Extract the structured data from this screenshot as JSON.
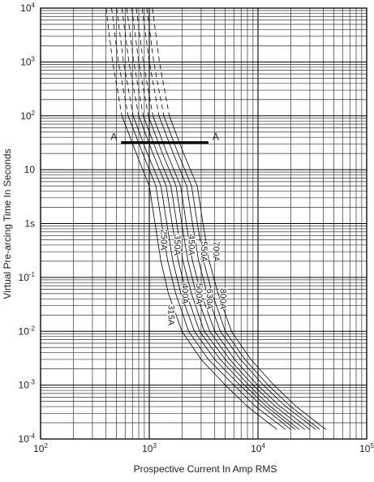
{
  "chart_data": {
    "type": "line",
    "xlabel": "Prospective Current In Amp RMS",
    "ylabel": "Virtual Pre-arcing Time In Seconds",
    "xscale": "log",
    "yscale": "log",
    "xlim": [
      100,
      100000
    ],
    "ylim": [
      0.0001,
      10000
    ],
    "grid": true,
    "x_ticks": [
      {
        "base": "10",
        "exp": "2"
      },
      {
        "base": "10",
        "exp": "3"
      },
      {
        "base": "10",
        "exp": "4"
      },
      {
        "base": "10",
        "exp": "5"
      }
    ],
    "y_ticks": [
      {
        "base": "10",
        "exp": "-4"
      },
      {
        "base": "10",
        "exp": "-3"
      },
      {
        "base": "10",
        "exp": "-2"
      },
      {
        "base": "10",
        "exp": "-1"
      },
      {
        "base": "1s",
        "exp": ""
      },
      {
        "base": "10",
        "exp": ""
      },
      {
        "base": "10",
        "exp": "2"
      },
      {
        "base": "10",
        "exp": "3"
      },
      {
        "base": "10",
        "exp": "4"
      }
    ],
    "reference_line": {
      "label_left": "A",
      "label_right": "A",
      "y": 32,
      "x_start": 550,
      "x_end": 3500
    },
    "series": [
      {
        "name": "250A",
        "label_x": 1280,
        "label_y": 0.5,
        "x": [
          400,
          460,
          560,
          760,
          1000,
          1130,
          1280,
          1500,
          2000,
          3000,
          5000,
          8000,
          15000
        ],
        "y": [
          10000,
          1000,
          100,
          20,
          5,
          1,
          0.2,
          0.05,
          0.01,
          0.003,
          0.001,
          0.0004,
          0.00015
        ]
      },
      {
        "name": "315A",
        "label_x": 1500,
        "label_y": 0.02,
        "x": [
          450,
          520,
          640,
          870,
          1150,
          1300,
          1480,
          1750,
          2300,
          3500,
          6000,
          9500,
          18000
        ],
        "y": [
          10000,
          1000,
          100,
          20,
          5,
          1,
          0.2,
          0.05,
          0.01,
          0.003,
          0.001,
          0.0004,
          0.00015
        ]
      },
      {
        "name": "350A",
        "label_x": 1700,
        "label_y": 0.4,
        "x": [
          500,
          580,
          710,
          960,
          1280,
          1450,
          1650,
          1950,
          2600,
          4000,
          6800,
          11000,
          20000
        ],
        "y": [
          10000,
          1000,
          100,
          20,
          5,
          1,
          0.2,
          0.05,
          0.01,
          0.003,
          0.001,
          0.0004,
          0.00015
        ]
      },
      {
        "name": "400A",
        "label_x": 2000,
        "label_y": 0.05,
        "x": [
          560,
          650,
          800,
          1080,
          1430,
          1620,
          1850,
          2200,
          2900,
          4500,
          7500,
          12000,
          22000
        ],
        "y": [
          10000,
          1000,
          100,
          20,
          5,
          1,
          0.2,
          0.05,
          0.01,
          0.003,
          0.001,
          0.0004,
          0.00015
        ]
      },
      {
        "name": "450A",
        "label_x": 2300,
        "label_y": 0.4,
        "x": [
          620,
          720,
          880,
          1190,
          1580,
          1790,
          2040,
          2450,
          3200,
          5000,
          8200,
          13000,
          24000
        ],
        "y": [
          10000,
          1000,
          100,
          20,
          5,
          1,
          0.2,
          0.05,
          0.01,
          0.003,
          0.001,
          0.0004,
          0.00015
        ]
      },
      {
        "name": "500A",
        "label_x": 2700,
        "label_y": 0.05,
        "x": [
          690,
          800,
          980,
          1320,
          1760,
          1990,
          2270,
          2700,
          3600,
          5500,
          9000,
          14500,
          27000
        ],
        "y": [
          10000,
          1000,
          100,
          20,
          5,
          1,
          0.2,
          0.05,
          0.01,
          0.003,
          0.001,
          0.0004,
          0.00015
        ]
      },
      {
        "name": "550A",
        "label_x": 3000,
        "label_y": 0.3,
        "x": [
          760,
          880,
          1080,
          1460,
          1940,
          2190,
          2500,
          3000,
          4000,
          6100,
          9900,
          16000,
          30000
        ],
        "y": [
          10000,
          1000,
          100,
          20,
          5,
          1,
          0.2,
          0.05,
          0.01,
          0.003,
          0.001,
          0.0004,
          0.00015
        ]
      },
      {
        "name": "630A",
        "label_x": 3400,
        "label_y": 0.04,
        "x": [
          860,
          1000,
          1230,
          1660,
          2210,
          2500,
          2850,
          3400,
          4500,
          6900,
          11200,
          18000,
          34000
        ],
        "y": [
          10000,
          1000,
          100,
          20,
          5,
          1,
          0.2,
          0.05,
          0.01,
          0.003,
          0.001,
          0.0004,
          0.00015
        ]
      },
      {
        "name": "700A",
        "label_x": 3900,
        "label_y": 0.3,
        "x": [
          950,
          1100,
          1360,
          1840,
          2450,
          2770,
          3160,
          3800,
          5000,
          7600,
          12400,
          20000,
          37000
        ],
        "y": [
          10000,
          1000,
          100,
          20,
          5,
          1,
          0.2,
          0.05,
          0.01,
          0.003,
          0.001,
          0.0004,
          0.00015
        ]
      },
      {
        "name": "800A",
        "label_x": 4500,
        "label_y": 0.04,
        "x": [
          1070,
          1240,
          1530,
          2070,
          2760,
          3120,
          3560,
          4300,
          5700,
          8600,
          14000,
          22500,
          42000
        ],
        "y": [
          10000,
          1000,
          100,
          20,
          5,
          1,
          0.2,
          0.05,
          0.01,
          0.003,
          0.001,
          0.0004,
          0.00015
        ]
      }
    ]
  }
}
